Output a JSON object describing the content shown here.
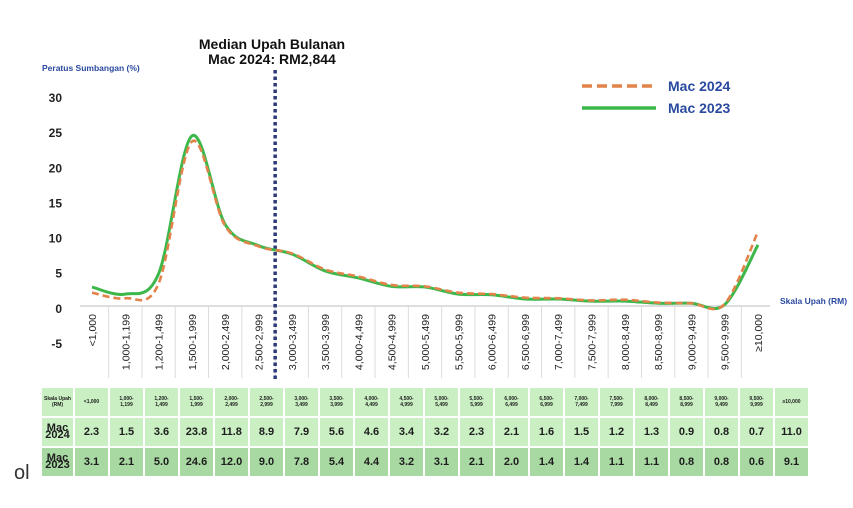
{
  "chart_data": {
    "type": "line",
    "title": "Median Upah Bulanan",
    "subtitle": "Mac 2024: RM2,844",
    "ylabel": "Peratus Sumbangan (%)",
    "xlabel": "Skala Upah (RM)",
    "ylim": [
      -5,
      30
    ],
    "yticks": [
      "30",
      "25",
      "20",
      "15",
      "10",
      "5",
      "0",
      "-5"
    ],
    "categories": [
      "<1,000",
      "1,000-1,199",
      "1,200-1,499",
      "1,500-1,999",
      "2,000-2,499",
      "2,500-2,999",
      "3,000-3,499",
      "3,500-3,999",
      "4,000-4,499",
      "4,500-4,999",
      "5,000-5,499",
      "5,500-5,999",
      "6,000-6,499",
      "6,500-6,999",
      "7,000-7,499",
      "7,500-7,999",
      "8,000-8,499",
      "8,500-8,999",
      "9,000-9,499",
      "9,500-9,999",
      "≥10,000"
    ],
    "series": [
      {
        "name": "Mac 2024",
        "color": "#e2834a",
        "style": "dashed",
        "values": [
          2.3,
          1.5,
          3.6,
          23.8,
          11.8,
          8.9,
          7.9,
          5.6,
          4.6,
          3.4,
          3.2,
          2.3,
          2.1,
          1.6,
          1.5,
          1.2,
          1.3,
          0.9,
          0.8,
          0.7,
          11.0
        ]
      },
      {
        "name": "Mac 2023",
        "color": "#3cb84a",
        "style": "solid",
        "values": [
          3.1,
          2.1,
          5.0,
          24.6,
          12.0,
          9.0,
          7.8,
          5.4,
          4.4,
          3.2,
          3.1,
          2.1,
          2.0,
          1.4,
          1.4,
          1.1,
          1.1,
          0.8,
          0.8,
          0.6,
          9.1
        ]
      }
    ],
    "median_marker": {
      "between": [
        "2,500-2,999",
        "3,000-3,499"
      ],
      "color": "#2e3a78",
      "style": "dotted"
    },
    "legend_position": "top-right",
    "grid": false
  },
  "table": {
    "header_label": "Skala Upah (RM)",
    "header_cells": [
      "<1,000",
      "1,000-\n1,199",
      "1,200-\n1,499",
      "1,500-\n1,999",
      "2,000-\n2,499",
      "2,500-\n2,999",
      "3,000-\n3,499",
      "3,500-\n3,999",
      "4,000-\n4,499",
      "4,500-\n4,999",
      "5,000-\n5,499",
      "5,500-\n5,999",
      "6,000-\n6,499",
      "6,500-\n6,999",
      "7,000-\n7,499",
      "7,500-\n7,999",
      "8,000-\n8,499",
      "8,500-\n8,999",
      "9,000-\n9,499",
      "9,500-\n9,999",
      "≥10,000"
    ],
    "row_2024_label": "Mac 2024",
    "row_2024": [
      "2.3",
      "1.5",
      "3.6",
      "23.8",
      "11.8",
      "8.9",
      "7.9",
      "5.6",
      "4.6",
      "3.4",
      "3.2",
      "2.3",
      "2.1",
      "1.6",
      "1.5",
      "1.2",
      "1.3",
      "0.9",
      "0.8",
      "0.7",
      "11.0"
    ],
    "row_2023_label": "Mac 2023",
    "row_2023": [
      "3.1",
      "2.1",
      "5.0",
      "24.6",
      "12.0",
      "9.0",
      "7.8",
      "5.4",
      "4.4",
      "3.2",
      "3.1",
      "2.1",
      "2.0",
      "1.4",
      "1.4",
      "1.1",
      "1.1",
      "0.8",
      "0.8",
      "0.6",
      "9.1"
    ]
  },
  "stray_text": "ol"
}
